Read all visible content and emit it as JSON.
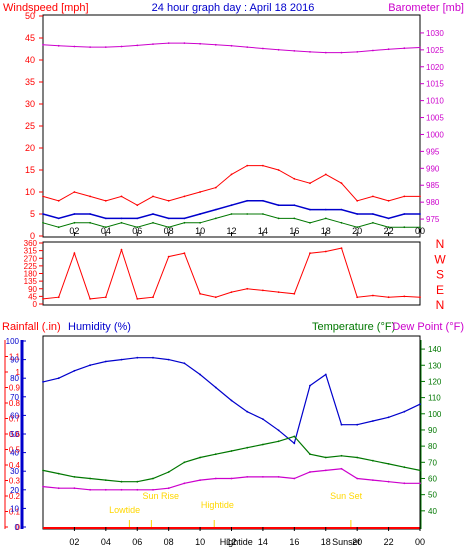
{
  "title": "24 hour graph day : April 18 2016",
  "colors": {
    "frame": "#000000",
    "wind": "#ff0000",
    "wind_avg": "#0000cc",
    "gust_green": "#007700",
    "barometer": "#cc00cc",
    "rain": "#ff0000",
    "humidity": "#0000cc",
    "temperature": "#007700",
    "dewpoint": "#cc00cc",
    "sun": "#ffd700",
    "grid": "#ffffff"
  },
  "time_ticks": [
    "02",
    "04",
    "06",
    "08",
    "10",
    "12",
    "14",
    "16",
    "18",
    "20",
    "22",
    "00"
  ],
  "chart_data": [
    {
      "type": "line",
      "panel": "wind-barometer",
      "left_axis_label": "Windspeed [mph]",
      "right_axis_label": "Barometer [mb]",
      "left_ylim": [
        0,
        50
      ],
      "left_ticks": [
        0,
        5,
        10,
        15,
        20,
        25,
        30,
        35,
        40,
        45,
        50
      ],
      "right_ylim": [
        970,
        1035
      ],
      "right_ticks": [
        975,
        980,
        985,
        990,
        995,
        1000,
        1005,
        1010,
        1015,
        1020,
        1025,
        1030
      ],
      "x": [
        0,
        1,
        2,
        3,
        4,
        5,
        6,
        7,
        8,
        9,
        10,
        11,
        12,
        13,
        14,
        15,
        16,
        17,
        18,
        19,
        20,
        21,
        22,
        23,
        24
      ],
      "series": [
        {
          "key": "gust",
          "color": "#ff0000",
          "values": [
            9,
            8,
            10,
            9,
            8,
            9,
            7,
            9,
            8,
            9,
            10,
            11,
            14,
            16,
            16,
            15,
            13,
            12,
            14,
            12,
            8,
            9,
            8,
            9,
            9
          ]
        },
        {
          "key": "average",
          "color": "#0000cc",
          "values": [
            5,
            4,
            5,
            5,
            4,
            4,
            4,
            5,
            4,
            4,
            5,
            6,
            7,
            8,
            8,
            7,
            7,
            6,
            6,
            6,
            5,
            5,
            4,
            5,
            5
          ]
        },
        {
          "key": "lull",
          "color": "#007700",
          "values": [
            3,
            2,
            3,
            3,
            2,
            3,
            2,
            3,
            2,
            3,
            3,
            4,
            5,
            5,
            5,
            4,
            4,
            3,
            4,
            3,
            2,
            3,
            2,
            2,
            2
          ]
        },
        {
          "key": "barometer",
          "color": "#cc00cc",
          "values": [
            1026.5,
            1026.2,
            1026,
            1025.8,
            1025.8,
            1026,
            1026.3,
            1026.7,
            1027,
            1027,
            1026.8,
            1026.5,
            1026.2,
            1025.8,
            1025.4,
            1025,
            1024.7,
            1024.4,
            1024.2,
            1024.2,
            1024.4,
            1024.8,
            1025.2,
            1025.5,
            1025.7
          ]
        }
      ]
    },
    {
      "type": "line",
      "panel": "wind-direction",
      "ylim": [
        0,
        360
      ],
      "left_ticks": [
        0,
        45,
        90,
        135,
        180,
        225,
        270,
        315,
        360
      ],
      "compass_labels": [
        "N",
        "W",
        "S",
        "E",
        "N"
      ],
      "x": [
        0,
        1,
        2,
        3,
        4,
        5,
        6,
        7,
        8,
        9,
        10,
        11,
        12,
        13,
        14,
        15,
        16,
        17,
        18,
        19,
        20,
        21,
        22,
        23,
        24
      ],
      "series": [
        {
          "key": "direction",
          "color": "#ff0000",
          "values": [
            30,
            40,
            300,
            30,
            40,
            320,
            30,
            40,
            280,
            300,
            60,
            40,
            70,
            90,
            80,
            70,
            60,
            300,
            310,
            330,
            40,
            50,
            40,
            45,
            40
          ]
        }
      ]
    },
    {
      "type": "line",
      "panel": "rain-humidity-temp",
      "left_outer_label": "Rainfall (.in)",
      "left_inner_label": "Humidity (%)",
      "right_label_temp": "Temperature (°F)",
      "right_label_dew": "Dew Point (°F)",
      "rain_ticks": [
        0,
        0.1,
        0.2,
        0.3,
        0.4,
        0.5,
        0.6,
        0.7,
        0.8,
        0.9,
        1,
        1.1
      ],
      "humidity_ticks": [
        0,
        10,
        20,
        30,
        40,
        50,
        60,
        70,
        80,
        90,
        100
      ],
      "temp_ticks": [
        40,
        50,
        60,
        70,
        80,
        90,
        100,
        110,
        120,
        130,
        140
      ],
      "rain_ylim": [
        0,
        1.2
      ],
      "humidity_ylim": [
        0,
        100
      ],
      "temp_ylim": [
        30,
        145
      ],
      "x": [
        0,
        1,
        2,
        3,
        4,
        5,
        6,
        7,
        8,
        9,
        10,
        11,
        12,
        13,
        14,
        15,
        16,
        17,
        18,
        19,
        20,
        21,
        22,
        23,
        24
      ],
      "series": [
        {
          "key": "humidity",
          "color": "#0000cc",
          "values": [
            78,
            80,
            84,
            87,
            89,
            90,
            91,
            91,
            90,
            88,
            82,
            75,
            68,
            62,
            58,
            52,
            45,
            76,
            82,
            55,
            55,
            57,
            59,
            62,
            66
          ]
        },
        {
          "key": "temperature",
          "color": "#007700",
          "values": [
            65,
            63,
            61,
            60,
            59,
            58,
            58,
            60,
            64,
            70,
            73,
            75,
            77,
            79,
            81,
            83,
            86,
            75,
            73,
            74,
            73,
            71,
            69,
            67,
            65
          ]
        },
        {
          "key": "dewpoint",
          "color": "#cc00cc",
          "values": [
            55,
            54,
            54,
            53,
            53,
            53,
            53,
            53,
            54,
            57,
            59,
            60,
            60,
            61,
            61,
            61,
            60,
            64,
            65,
            66,
            60,
            59,
            58,
            57,
            57
          ]
        }
      ],
      "annotations": [
        "Lowtide",
        "Sun Rise",
        "Hightide",
        "Sun Set"
      ],
      "axis_markers": [
        "Hightide",
        "Sunset"
      ]
    }
  ]
}
